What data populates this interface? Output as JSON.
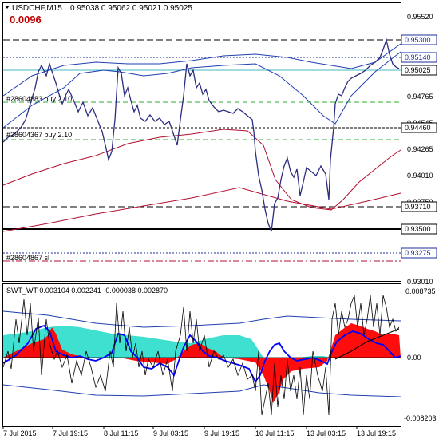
{
  "header": {
    "title": "USDCHF,M15",
    "ohlc": "0.95038 0.95062 0.95021 0.95025",
    "spread": "0.0096"
  },
  "main_panel": {
    "price_ticks": [
      "0.95520",
      "0.95300",
      "0.95140",
      "0.95025",
      "0.94765",
      "0.94545",
      "0.94460",
      "0.94265",
      "0.94010",
      "0.93750",
      "0.93710",
      "0.93500",
      "0.93275",
      "0.93010"
    ],
    "highlighted_levels": [
      {
        "label": "0.95300",
        "bg": "#ffffff",
        "color": "#1c2c9c"
      },
      {
        "label": "0.95140",
        "bg": "#ffffff",
        "color": "#1c2c9c"
      },
      {
        "label": "0.95025",
        "bg": "#ffffff",
        "color": "#000000"
      },
      {
        "label": "0.94460",
        "bg": "#ffffff",
        "color": "#000000"
      },
      {
        "label": "0.93710",
        "bg": "#ffffff",
        "color": "#000000"
      },
      {
        "label": "0.93500",
        "bg": "#ffffff",
        "color": "#000000"
      },
      {
        "label": "0.93275",
        "bg": "#ffffff",
        "color": "#1c2c9c"
      }
    ],
    "orders": [
      {
        "label": "#28604883 buy 2.10"
      },
      {
        "label": "#28604367 buy 2.10"
      },
      {
        "label": "#28604867 sl"
      }
    ]
  },
  "indicator_panel": {
    "title": "SWT_WT 0.003104 0.002241 -0.000038 0.002870",
    "ticks": [
      "0.008735",
      "0.00",
      "-0.008203"
    ]
  },
  "time_axis": [
    "7 Jul 2015",
    "7 Jul 19:15",
    "8 Jul 11:15",
    "9 Jul 03:15",
    "9 Jul 19:15",
    "10 Jul 11:15",
    "13 Jul 03:15",
    "13 Jul 19:15"
  ],
  "colors": {
    "price_line": "#2d2d80",
    "bands": "#1f3fb0",
    "ma": "#b01030",
    "fill_red": "#ff0000",
    "fill_turquoise": "#40e0d0",
    "grid_green": "#2fae2f"
  }
}
